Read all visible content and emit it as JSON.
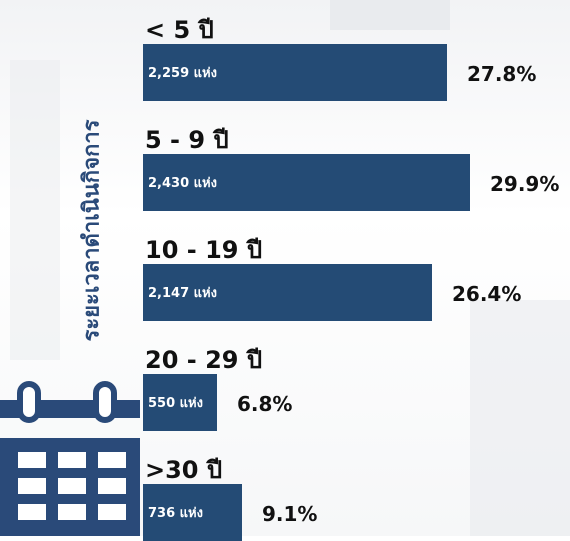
{
  "chart_data": {
    "type": "bar",
    "orientation": "horizontal",
    "ylabel": "ระยะเวลาดำเนินกิจการ",
    "categories": [
      "< 5 ปี",
      "5 - 9 ปี",
      "10 - 19 ปี",
      "20 - 29 ปี",
      ">30 ปี"
    ],
    "values": [
      2259,
      2430,
      2147,
      550,
      736
    ],
    "count_labels": [
      "2,259 แห่ง",
      "2,430 แห่ง",
      "2,147 แห่ง",
      "550 แห่ง",
      "736 แห่ง"
    ],
    "percent_labels": [
      "27.8%",
      "29.9%",
      "26.4%",
      "6.8%",
      "9.1%"
    ],
    "bar_color": "#244b75",
    "legend": "none",
    "grid": false
  },
  "icons": {
    "calendar": "calendar-icon"
  }
}
